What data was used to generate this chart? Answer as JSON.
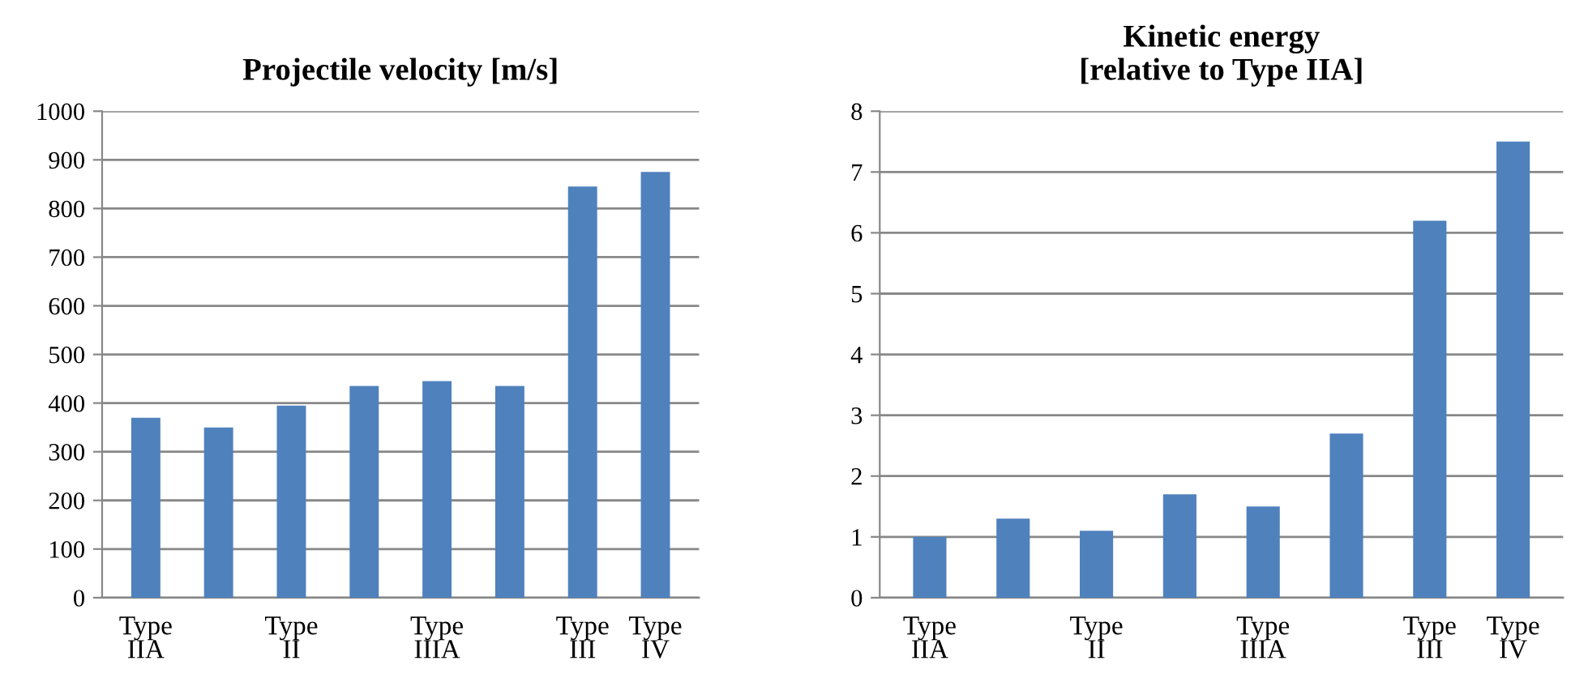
{
  "chart_data": [
    {
      "type": "bar",
      "title": "Projectile velocity [m/s]",
      "categories": [
        "Type\nIIA",
        null,
        "Type\nII",
        null,
        "Type\nIIIA",
        null,
        "Type\nIII",
        "Type\nIV"
      ],
      "values": [
        370,
        350,
        395,
        435,
        445,
        435,
        845,
        875
      ],
      "color": "#4f81bd",
      "ylim": [
        0,
        1000
      ],
      "yticks": [
        0,
        100,
        200,
        300,
        400,
        500,
        600,
        700,
        800,
        900,
        1000
      ],
      "grid": "y"
    },
    {
      "type": "bar",
      "title": "Kinetic energy\n[relative to Type IIA]",
      "categories": [
        "Type\nIIA",
        null,
        "Type\nII",
        null,
        "Type\nIIIA",
        null,
        "Type\nIII",
        "Type\nIV"
      ],
      "values": [
        1.0,
        1.3,
        1.1,
        1.7,
        1.5,
        2.7,
        6.2,
        7.5
      ],
      "color": "#4f81bd",
      "ylim": [
        0,
        8
      ],
      "yticks": [
        0,
        1,
        2,
        3,
        4,
        5,
        6,
        7,
        8
      ],
      "grid": "y"
    }
  ]
}
